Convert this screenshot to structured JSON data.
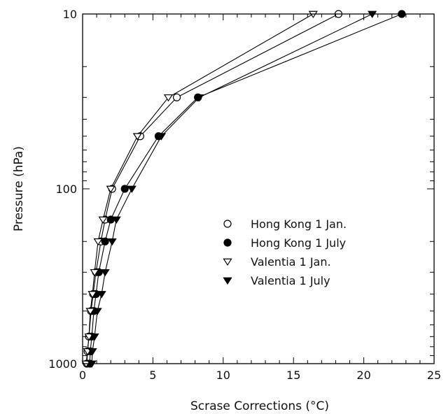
{
  "chart_data": {
    "type": "line",
    "xlabel": "Scrase Corrections (°C)",
    "ylabel": "Pressure (hPa)",
    "xlim": [
      0,
      25
    ],
    "ylim": [
      1000,
      10
    ],
    "y_scale": "log",
    "y_inverted": true,
    "x_ticks": [
      0,
      5,
      10,
      15,
      20,
      25
    ],
    "x_tick_labels": [
      "0",
      "5",
      "10",
      "15",
      "20",
      "25"
    ],
    "y_ticks": [
      10,
      100,
      1000
    ],
    "y_tick_labels": [
      "10",
      "100",
      "1000"
    ],
    "grid": false,
    "legend_position": "center-right",
    "series": [
      {
        "name": "Hong Kong 1 Jan.",
        "marker": "circle-open",
        "color": "#000000",
        "points": [
          {
            "x": 18.2,
            "y": 10
          },
          {
            "x": 6.7,
            "y": 30
          },
          {
            "x": 4.1,
            "y": 50
          },
          {
            "x": 2.1,
            "y": 100
          },
          {
            "x": 1.6,
            "y": 150
          },
          {
            "x": 1.3,
            "y": 200
          },
          {
            "x": 0.95,
            "y": 300
          },
          {
            "x": 0.75,
            "y": 400
          },
          {
            "x": 0.6,
            "y": 500
          },
          {
            "x": 0.45,
            "y": 700
          },
          {
            "x": 0.35,
            "y": 850
          },
          {
            "x": 0.3,
            "y": 1000
          }
        ]
      },
      {
        "name": "Hong Kong 1 July",
        "marker": "circle-filled",
        "color": "#000000",
        "points": [
          {
            "x": 22.7,
            "y": 10
          },
          {
            "x": 8.2,
            "y": 30
          },
          {
            "x": 5.4,
            "y": 50
          },
          {
            "x": 3.0,
            "y": 100
          },
          {
            "x": 2.0,
            "y": 150
          },
          {
            "x": 1.6,
            "y": 200
          },
          {
            "x": 1.15,
            "y": 300
          },
          {
            "x": 0.95,
            "y": 400
          },
          {
            "x": 0.8,
            "y": 500
          },
          {
            "x": 0.65,
            "y": 700
          },
          {
            "x": 0.55,
            "y": 850
          },
          {
            "x": 0.5,
            "y": 1000
          }
        ]
      },
      {
        "name": "Valentia 1 Jan.",
        "marker": "triangle-down-open",
        "color": "#000000",
        "points": [
          {
            "x": 16.4,
            "y": 10
          },
          {
            "x": 6.1,
            "y": 30
          },
          {
            "x": 3.9,
            "y": 50
          },
          {
            "x": 2.0,
            "y": 100
          },
          {
            "x": 1.45,
            "y": 150
          },
          {
            "x": 1.1,
            "y": 200
          },
          {
            "x": 0.85,
            "y": 300
          },
          {
            "x": 0.7,
            "y": 400
          },
          {
            "x": 0.55,
            "y": 500
          },
          {
            "x": 0.45,
            "y": 700
          },
          {
            "x": 0.35,
            "y": 850
          },
          {
            "x": 0.25,
            "y": 1000
          }
        ]
      },
      {
        "name": "Valentia 1 July",
        "marker": "triangle-down-filled",
        "color": "#000000",
        "points": [
          {
            "x": 20.6,
            "y": 10
          },
          {
            "x": 8.3,
            "y": 30
          },
          {
            "x": 5.6,
            "y": 50
          },
          {
            "x": 3.5,
            "y": 100
          },
          {
            "x": 2.4,
            "y": 150
          },
          {
            "x": 2.1,
            "y": 200
          },
          {
            "x": 1.6,
            "y": 300
          },
          {
            "x": 1.35,
            "y": 400
          },
          {
            "x": 1.05,
            "y": 500
          },
          {
            "x": 0.85,
            "y": 700
          },
          {
            "x": 0.7,
            "y": 850
          },
          {
            "x": 0.65,
            "y": 1000
          }
        ]
      }
    ]
  }
}
